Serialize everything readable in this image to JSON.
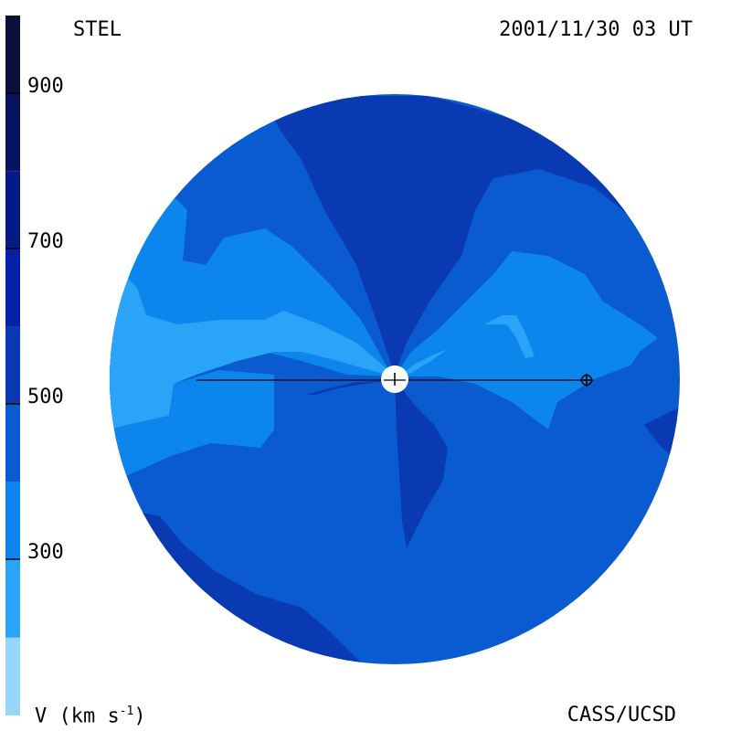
{
  "header": {
    "instrument": "STEL",
    "timestamp": "2001/11/30 03 UT"
  },
  "footer": {
    "units_prefix": "V (km s",
    "units_exp": "-1",
    "units_suffix": ")",
    "credit": "CASS/UCSD"
  },
  "colorbar": {
    "tick_labels": [
      "900",
      "700",
      "500",
      "300"
    ],
    "bands": [
      {
        "from": 900,
        "to": 1000,
        "color": "#0a0f3c"
      },
      {
        "from": 800,
        "to": 900,
        "color": "#06135e"
      },
      {
        "from": 700,
        "to": 800,
        "color": "#061a84"
      },
      {
        "from": 600,
        "to": 700,
        "color": "#0720a8"
      },
      {
        "from": 500,
        "to": 600,
        "color": "#0a3ab2"
      },
      {
        "from": 400,
        "to": 500,
        "color": "#0a5ad0"
      },
      {
        "from": 300,
        "to": 400,
        "color": "#0c86ec"
      },
      {
        "from": 200,
        "to": 300,
        "color": "#2aa4f6"
      },
      {
        "from": 100,
        "to": 200,
        "color": "#96d6fa"
      }
    ]
  },
  "colors": {
    "base": "#0a5ad0",
    "slow": "#0c86ec",
    "very_slow": "#2aa4f6",
    "fast": "#0a3ab2",
    "sun": "#ffffff"
  }
}
